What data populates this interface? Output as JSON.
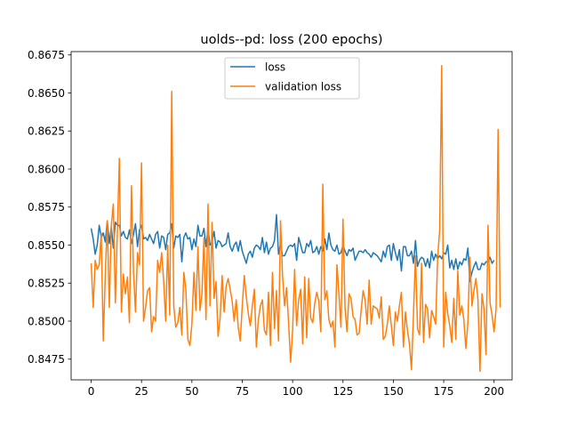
{
  "chart_data": {
    "type": "line",
    "title": "uolds--pd: loss (200 epochs)",
    "xlabel": "",
    "ylabel": "",
    "xlim": [
      -9.95,
      208.95
    ],
    "ylim": [
      0.84614,
      0.86772
    ],
    "x_ticks": [
      0,
      25,
      50,
      75,
      100,
      125,
      150,
      175,
      200
    ],
    "y_ticks": [
      0.8475,
      0.85,
      0.8525,
      0.855,
      0.8575,
      0.86,
      0.8625,
      0.865,
      0.8675
    ],
    "grid": false,
    "legend_position": "upper center",
    "series": [
      {
        "name": "loss",
        "color": "#1f77b4",
        "values": [
          0.8561,
          0.8554,
          0.8544,
          0.855,
          0.8563,
          0.8555,
          0.8558,
          0.8552,
          0.8566,
          0.8551,
          0.8562,
          0.8548,
          0.8565,
          0.8563,
          0.8563,
          0.8556,
          0.8559,
          0.8555,
          0.8554,
          0.856,
          0.8551,
          0.8557,
          0.8564,
          0.8549,
          0.856,
          0.8563,
          0.8554,
          0.8555,
          0.8553,
          0.8557,
          0.8554,
          0.8551,
          0.8557,
          0.8559,
          0.8548,
          0.8556,
          0.8555,
          0.8547,
          0.8557,
          0.8558,
          0.8564,
          0.8548,
          0.8556,
          0.8555,
          0.8557,
          0.8539,
          0.8555,
          0.8558,
          0.8554,
          0.8555,
          0.8547,
          0.8554,
          0.8549,
          0.8563,
          0.8556,
          0.8556,
          0.8561,
          0.8549,
          0.8561,
          0.855,
          0.8552,
          0.8559,
          0.8548,
          0.8553,
          0.8552,
          0.8549,
          0.855,
          0.8551,
          0.8558,
          0.8549,
          0.8546,
          0.855,
          0.8552,
          0.8546,
          0.8553,
          0.8546,
          0.8542,
          0.8538,
          0.8544,
          0.8546,
          0.8542,
          0.8548,
          0.855,
          0.8549,
          0.8547,
          0.8555,
          0.8545,
          0.8552,
          0.8544,
          0.8548,
          0.8549,
          0.8553,
          0.857,
          0.8544,
          0.8551,
          0.8543,
          0.8543,
          0.8546,
          0.8549,
          0.855,
          0.8549,
          0.8551,
          0.854,
          0.8555,
          0.855,
          0.8545,
          0.8545,
          0.8551,
          0.8549,
          0.8553,
          0.8545,
          0.8546,
          0.8549,
          0.8544,
          0.8549,
          0.8546,
          0.8554,
          0.8547,
          0.8558,
          0.855,
          0.8547,
          0.8546,
          0.855,
          0.8544,
          0.8545,
          0.855,
          0.8546,
          0.8543,
          0.8547,
          0.8546,
          0.8548,
          0.854,
          0.8543,
          0.8546,
          0.8546,
          0.8545,
          0.8547,
          0.8545,
          0.8544,
          0.8542,
          0.8545,
          0.8544,
          0.8543,
          0.8541,
          0.8539,
          0.8546,
          0.8542,
          0.8549,
          0.855,
          0.854,
          0.8551,
          0.8545,
          0.854,
          0.8547,
          0.8533,
          0.8549,
          0.8549,
          0.8543,
          0.8543,
          0.8546,
          0.8538,
          0.8553,
          0.8536,
          0.854,
          0.8542,
          0.8541,
          0.8536,
          0.8541,
          0.8535,
          0.8546,
          0.854,
          0.8544,
          0.8541,
          0.8543,
          0.8541,
          0.8545,
          0.8544,
          0.855,
          0.8535,
          0.854,
          0.8534,
          0.8541,
          0.8534,
          0.8539,
          0.8537,
          0.8541,
          0.854,
          0.8548,
          0.8526,
          0.8532,
          0.8536,
          0.8539,
          0.8534,
          0.8534,
          0.8538,
          0.8537,
          0.8539,
          0.8539,
          0.8542,
          0.8538,
          0.854
        ]
      },
      {
        "name": "validation loss",
        "color": "#ff7f0e",
        "values": [
          0.8538,
          0.8509,
          0.854,
          0.8534,
          0.8537,
          0.8558,
          0.8487,
          0.853,
          0.8566,
          0.8509,
          0.8563,
          0.8577,
          0.8512,
          0.8559,
          0.8607,
          0.8506,
          0.8531,
          0.8518,
          0.8529,
          0.8499,
          0.8589,
          0.8533,
          0.8506,
          0.8545,
          0.8537,
          0.8604,
          0.85,
          0.8509,
          0.852,
          0.8522,
          0.8493,
          0.8503,
          0.85,
          0.854,
          0.8532,
          0.8545,
          0.8526,
          0.85,
          0.855,
          0.8504,
          0.8651,
          0.851,
          0.8496,
          0.8499,
          0.8509,
          0.8491,
          0.8532,
          0.8521,
          0.8488,
          0.8484,
          0.8498,
          0.8532,
          0.8507,
          0.8549,
          0.8507,
          0.8518,
          0.8555,
          0.8501,
          0.8577,
          0.851,
          0.8565,
          0.8515,
          0.8526,
          0.849,
          0.8502,
          0.853,
          0.8506,
          0.8523,
          0.8528,
          0.8521,
          0.8513,
          0.85,
          0.8514,
          0.8496,
          0.8487,
          0.851,
          0.853,
          0.8516,
          0.8505,
          0.8497,
          0.851,
          0.8521,
          0.8483,
          0.8501,
          0.851,
          0.8514,
          0.8494,
          0.8491,
          0.8519,
          0.8484,
          0.8532,
          0.8495,
          0.852,
          0.8487,
          0.8566,
          0.853,
          0.851,
          0.8522,
          0.8499,
          0.8473,
          0.8494,
          0.8534,
          0.8497,
          0.8514,
          0.8521,
          0.8485,
          0.8529,
          0.8489,
          0.8528,
          0.8502,
          0.8499,
          0.8512,
          0.8519,
          0.8513,
          0.8493,
          0.859,
          0.8514,
          0.852,
          0.8501,
          0.8496,
          0.85,
          0.8483,
          0.8537,
          0.8518,
          0.8496,
          0.8567,
          0.8509,
          0.8493,
          0.8518,
          0.8515,
          0.8503,
          0.8501,
          0.8491,
          0.8492,
          0.8507,
          0.852,
          0.8514,
          0.8498,
          0.8527,
          0.8498,
          0.851,
          0.8509,
          0.8508,
          0.8502,
          0.8516,
          0.8488,
          0.849,
          0.8498,
          0.851,
          0.8497,
          0.8484,
          0.8506,
          0.85,
          0.851,
          0.8519,
          0.8483,
          0.8506,
          0.8494,
          0.8485,
          0.8468,
          0.8505,
          0.8543,
          0.8495,
          0.8491,
          0.8538,
          0.8486,
          0.8511,
          0.8508,
          0.8489,
          0.8507,
          0.8503,
          0.8498,
          0.8542,
          0.856,
          0.8668,
          0.8483,
          0.8519,
          0.8505,
          0.8497,
          0.8486,
          0.8515,
          0.8488,
          0.8533,
          0.8504,
          0.851,
          0.8501,
          0.8482,
          0.8499,
          0.8542,
          0.851,
          0.852,
          0.8528,
          0.8514,
          0.8467,
          0.8518,
          0.8508,
          0.8478,
          0.8563,
          0.8512,
          0.8504,
          0.8493,
          0.8508,
          0.8626,
          0.8509
        ]
      }
    ]
  }
}
